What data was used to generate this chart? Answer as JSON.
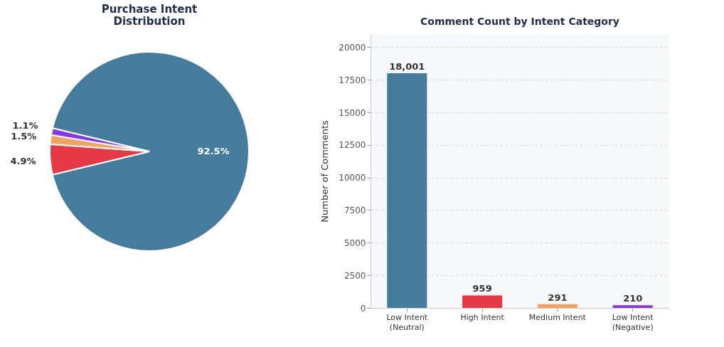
{
  "chart_data": [
    {
      "type": "pie",
      "title": "Purchase Intent\nDistribution",
      "categories": [
        null,
        null,
        null,
        null
      ],
      "values": [
        92.5,
        4.9,
        1.5,
        1.1
      ],
      "colors": [
        "#457b9d",
        "#e63946",
        "#f4a261",
        "#8338ec"
      ],
      "value_labels": [
        "92.5%",
        "4.9%",
        "1.5%",
        "1.1%"
      ],
      "legend": false
    },
    {
      "type": "bar",
      "title": "Comment Count by Intent Category",
      "ylabel": "Number of Comments",
      "categories": [
        "Low Intent (Neutral)",
        "High Intent",
        "Medium Intent",
        "Low Intent (Negative)"
      ],
      "values": [
        18001,
        959,
        291,
        210
      ],
      "colors": [
        "#457b9d",
        "#e63946",
        "#f4a261",
        "#8338ec"
      ],
      "value_labels": [
        "18,001",
        "959",
        "291",
        "210"
      ],
      "ylim": [
        0,
        21000
      ],
      "yticks": [
        0,
        {
          "value": 2500,
          "label": "2500"
        },
        {
          "value": 5000,
          "label": "5000"
        },
        {
          "value": 7500,
          "label": "7500"
        },
        {
          "value": 10000,
          "label": "10000"
        },
        {
          "value": 12500,
          "label": "12500"
        },
        {
          "value": 15000,
          "label": "15000"
        },
        {
          "value": 17500,
          "label": "17500"
        },
        {
          "value": 20000,
          "label": "20000"
        }
      ],
      "grid": "y",
      "legend": false
    }
  ]
}
